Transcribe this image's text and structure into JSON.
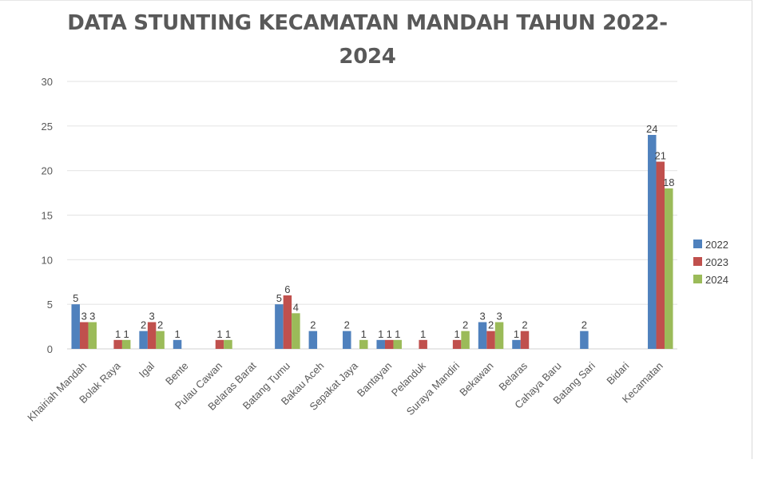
{
  "chart_data": {
    "type": "bar",
    "title": "DATA STUNTING KECAMATAN MANDAH TAHUN 2022-2024",
    "xlabel": "",
    "ylabel": "",
    "ylim": [
      0,
      30
    ],
    "yticks": [
      0,
      5,
      10,
      15,
      20,
      25,
      30
    ],
    "grid": true,
    "legend_position": "right",
    "categories": [
      "Khairiah Mandah",
      "Bolak Raya",
      "Igal",
      "Bente",
      "Pulau Cawan",
      "Belaras Barat",
      "Batang Tumu",
      "Bakau Aceh",
      "Sepakat Jaya",
      "Bantayan",
      "Pelanduk",
      "Suraya Mandiri",
      "Bekawan",
      "Belaras",
      "Cahaya Baru",
      "Batang Sari",
      "Bidari",
      "Kecamatan"
    ],
    "series": [
      {
        "name": "2022",
        "color": "#4f81bd",
        "values": [
          5,
          null,
          2,
          1,
          null,
          null,
          5,
          2,
          2,
          1,
          null,
          null,
          3,
          1,
          null,
          2,
          null,
          24
        ]
      },
      {
        "name": "2023",
        "color": "#c0504d",
        "values": [
          3,
          1,
          3,
          null,
          1,
          null,
          6,
          null,
          null,
          1,
          1,
          1,
          2,
          2,
          null,
          null,
          null,
          21
        ]
      },
      {
        "name": "2024",
        "color": "#9bbb59",
        "values": [
          3,
          1,
          2,
          null,
          1,
          null,
          4,
          null,
          1,
          1,
          null,
          2,
          3,
          null,
          null,
          null,
          null,
          18
        ]
      }
    ]
  }
}
